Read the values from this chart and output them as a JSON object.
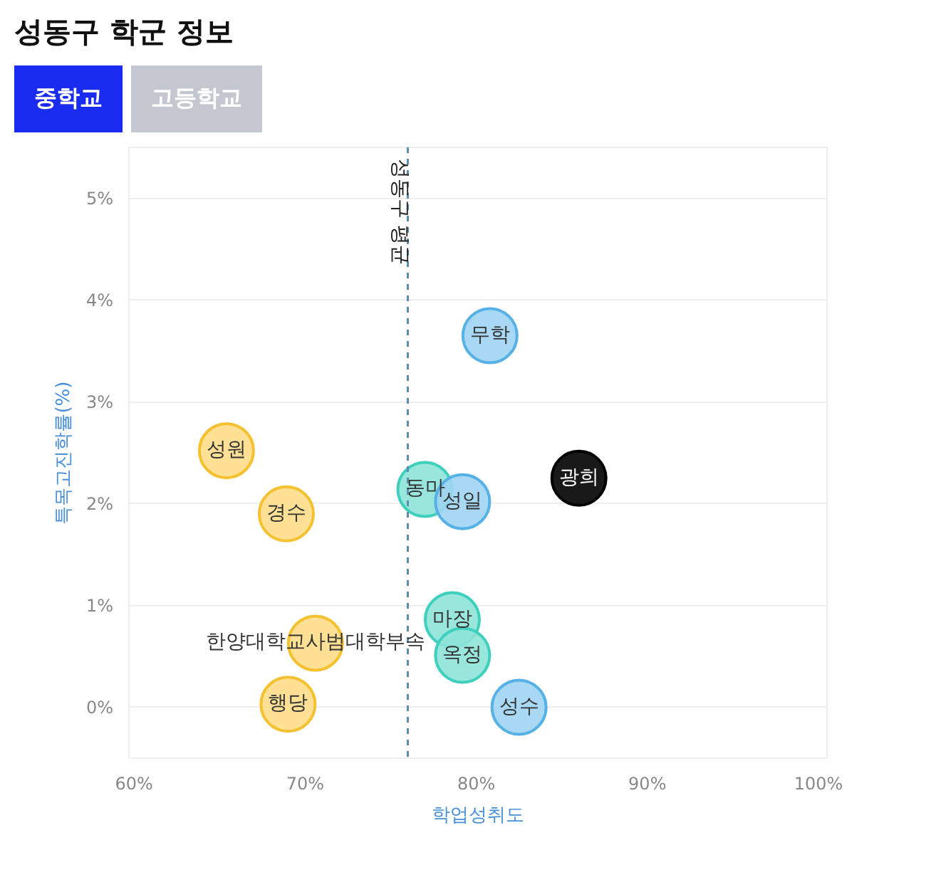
{
  "chart_data": {
    "type": "scatter",
    "title": "성동구 학군 정보",
    "annotations": [
      "중학교",
      "고등학교"
    ],
    "xlabel": "학업성취도",
    "ylabel": "특목고진학률(%)",
    "x": [
      65.4,
      68.9,
      70.6,
      69.0,
      77.0,
      79.2,
      80.8,
      86.0,
      78.6,
      79.2,
      82.5
    ],
    "values": [
      2.52,
      1.9,
      0.63,
      0.03,
      2.14,
      2.02,
      3.65,
      2.25,
      0.86,
      0.51,
      0.0
    ],
    "value_labels": [
      "성원",
      "경수",
      "한양대학교사범대학부속",
      "행당",
      "동마",
      "성일",
      "무학",
      "광희",
      "마장",
      "옥정",
      "성수"
    ],
    "colors": [
      "#ffdd88",
      "#ffdd88",
      "#ffdd88",
      "#ffdd88",
      "#8ee3d8",
      "#9fd4f2",
      "#9fd4f2",
      "#000000",
      "#8ee3d8",
      "#8ee3d8",
      "#9fd4f2"
    ],
    "xlim": [
      59.7,
      100.5
    ],
    "ylim": [
      -0.5,
      5.5
    ],
    "xticks": [
      {
        "value": 60,
        "label": "60%"
      },
      {
        "value": 70,
        "label": "70%"
      },
      {
        "value": 80,
        "label": "80%"
      },
      {
        "value": 90,
        "label": "90%"
      },
      {
        "value": 100,
        "label": "100%"
      }
    ],
    "yticks": [
      {
        "value": 0,
        "label": "0%"
      },
      {
        "value": 1,
        "label": "1%"
      },
      {
        "value": 2,
        "label": "2%"
      },
      {
        "value": 3,
        "label": "3%"
      },
      {
        "value": 4,
        "label": "4%"
      },
      {
        "value": 5,
        "label": "5%"
      }
    ],
    "ref_lines": [
      {
        "axis": "x",
        "value": 76.0,
        "label": "성동구 평균",
        "color": "#5b8db0",
        "line_style": "dashed"
      }
    ],
    "grid": "y",
    "marker": "circle"
  }
}
